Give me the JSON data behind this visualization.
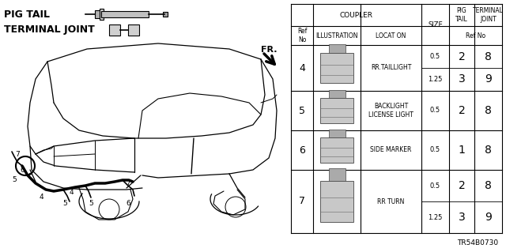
{
  "part_code": "TR54B0730",
  "bg_color": "#ffffff",
  "table": {
    "rows": [
      {
        "ref": "4",
        "location": "RR.TAILLIGHT",
        "sizes": [
          "0.5",
          "1.25"
        ],
        "pig_tail": [
          "2",
          "3"
        ],
        "terminal": [
          "8",
          "9"
        ]
      },
      {
        "ref": "5",
        "location": "BACKLIGHT\nLICENSE LIGHT",
        "sizes": [
          "0.5"
        ],
        "pig_tail": [
          "2"
        ],
        "terminal": [
          "8"
        ]
      },
      {
        "ref": "6",
        "location": "SIDE MARKER",
        "sizes": [
          "0.5"
        ],
        "pig_tail": [
          "1"
        ],
        "terminal": [
          "8"
        ]
      },
      {
        "ref": "7",
        "location": "RR TURN",
        "sizes": [
          "0.5",
          "1.25"
        ],
        "pig_tail": [
          "2",
          "3"
        ],
        "terminal": [
          "8",
          "9"
        ]
      }
    ]
  }
}
